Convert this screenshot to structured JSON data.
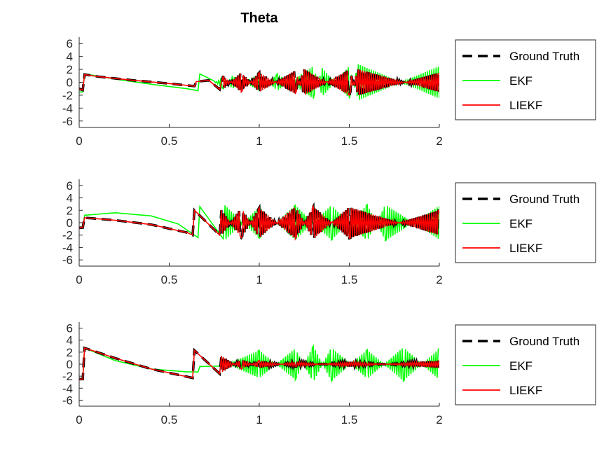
{
  "figure": {
    "title": "Theta"
  },
  "colors": {
    "ground_truth": "#000000",
    "ekf": "#00ff00",
    "liekf": "#ff0000",
    "axes": "#262626"
  },
  "chart_data": [
    {
      "type": "line",
      "title": "Theta",
      "xlabel": "",
      "ylabel": "",
      "xlim": [
        0,
        2
      ],
      "ylim": [
        -7,
        7
      ],
      "xticks": [
        0,
        0.5,
        1,
        1.5,
        2
      ],
      "xtick_labels": [
        "0",
        "0.5",
        "1",
        "1.5",
        "2"
      ],
      "yticks": [
        -6,
        -4,
        -2,
        0,
        2,
        4,
        6
      ],
      "ytick_labels": [
        "-6",
        "-4",
        "-2",
        "0",
        "2",
        "4",
        "6"
      ],
      "legend_location": "outside-right",
      "series": [
        {
          "name": "Ground Truth",
          "style": "dashed",
          "color": "#000000",
          "points": [
            [
              0,
              -1
            ],
            [
              0.02,
              -1.2
            ],
            [
              0.03,
              1.2
            ],
            [
              0.1,
              0.9
            ],
            [
              0.3,
              0.3
            ],
            [
              0.5,
              -0.2
            ],
            [
              0.64,
              -0.6
            ],
            [
              0.65,
              0.1
            ],
            [
              0.72,
              0.3
            ],
            [
              0.78,
              -1.1
            ],
            [
              0.8,
              1.0
            ],
            [
              0.9,
              -1.5
            ],
            [
              1.0,
              1.5
            ],
            [
              1.2,
              -1.8
            ],
            [
              1.25,
              2.0
            ],
            [
              1.5,
              -2.0
            ],
            [
              1.55,
              2.0
            ],
            [
              2.0,
              -1.5
            ]
          ]
        },
        {
          "name": "EKF",
          "style": "solid",
          "color": "#00ff00",
          "points": [
            [
              0,
              -1.5
            ],
            [
              0.02,
              -1.5
            ],
            [
              0.03,
              1.3
            ],
            [
              0.2,
              0.5
            ],
            [
              0.4,
              -0.3
            ],
            [
              0.6,
              -1.0
            ],
            [
              0.66,
              -1.3
            ],
            [
              0.67,
              1.3
            ],
            [
              0.75,
              0.2
            ],
            [
              0.8,
              -1.0
            ],
            [
              0.85,
              1.0
            ],
            [
              1.0,
              -1.3
            ],
            [
              1.1,
              1.3
            ],
            [
              1.3,
              -2.5
            ],
            [
              1.35,
              2.2
            ],
            [
              1.5,
              -2.5
            ],
            [
              1.55,
              2.8
            ],
            [
              2.0,
              -2.5
            ]
          ]
        },
        {
          "name": "LIEKF",
          "style": "solid",
          "color": "#ff0000",
          "points": [
            [
              0,
              -1
            ],
            [
              0.02,
              -1.2
            ],
            [
              0.03,
              1.2
            ],
            [
              0.1,
              0.9
            ],
            [
              0.3,
              0.3
            ],
            [
              0.5,
              -0.2
            ],
            [
              0.64,
              -0.6
            ],
            [
              0.65,
              0.1
            ],
            [
              0.72,
              0.3
            ],
            [
              0.78,
              -1.1
            ],
            [
              0.8,
              1.0
            ],
            [
              0.9,
              -1.5
            ],
            [
              1.0,
              1.5
            ],
            [
              1.2,
              -1.8
            ],
            [
              1.25,
              2.0
            ],
            [
              1.5,
              -2.0
            ],
            [
              1.55,
              2.0
            ],
            [
              2.0,
              -1.5
            ]
          ]
        }
      ]
    },
    {
      "type": "line",
      "title": "",
      "xlabel": "",
      "ylabel": "",
      "xlim": [
        0,
        2
      ],
      "ylim": [
        -7,
        7
      ],
      "xticks": [
        0,
        0.5,
        1,
        1.5,
        2
      ],
      "xtick_labels": [
        "0",
        "0.5",
        "1",
        "1.5",
        "2"
      ],
      "yticks": [
        -6,
        -4,
        -2,
        0,
        2,
        4,
        6
      ],
      "ytick_labels": [
        "-6",
        "-4",
        "-2",
        "0",
        "2",
        "4",
        "6"
      ],
      "legend_location": "outside-right",
      "series": [
        {
          "name": "Ground Truth",
          "style": "dashed",
          "color": "#000000",
          "points": [
            [
              0,
              -0.8
            ],
            [
              0.02,
              -0.8
            ],
            [
              0.03,
              0.8
            ],
            [
              0.2,
              0.4
            ],
            [
              0.4,
              -0.3
            ],
            [
              0.6,
              -1.6
            ],
            [
              0.63,
              -2.0
            ],
            [
              0.64,
              2.0
            ],
            [
              0.78,
              -2.0
            ],
            [
              0.79,
              2.0
            ],
            [
              0.9,
              -2.4
            ],
            [
              1.0,
              2.4
            ],
            [
              1.2,
              -2.6
            ],
            [
              1.3,
              2.6
            ],
            [
              1.5,
              -2.5
            ],
            [
              2.0,
              2.0
            ]
          ]
        },
        {
          "name": "EKF",
          "style": "solid",
          "color": "#00ff00",
          "points": [
            [
              0,
              -0.8
            ],
            [
              0.02,
              -0.8
            ],
            [
              0.03,
              1.2
            ],
            [
              0.2,
              1.6
            ],
            [
              0.4,
              1.1
            ],
            [
              0.55,
              -0.2
            ],
            [
              0.66,
              -2.4
            ],
            [
              0.67,
              2.6
            ],
            [
              0.8,
              -2.6
            ],
            [
              0.81,
              2.8
            ],
            [
              1.0,
              -2.5
            ],
            [
              1.2,
              2.8
            ],
            [
              1.4,
              -2.8
            ],
            [
              1.6,
              2.9
            ],
            [
              1.7,
              -2.9
            ],
            [
              2.0,
              2.7
            ]
          ]
        },
        {
          "name": "LIEKF",
          "style": "solid",
          "color": "#ff0000",
          "points": [
            [
              0,
              -0.8
            ],
            [
              0.02,
              -0.8
            ],
            [
              0.03,
              0.8
            ],
            [
              0.2,
              0.4
            ],
            [
              0.4,
              -0.3
            ],
            [
              0.6,
              -1.6
            ],
            [
              0.63,
              -2.0
            ],
            [
              0.64,
              2.0
            ],
            [
              0.78,
              -2.0
            ],
            [
              0.79,
              2.0
            ],
            [
              0.9,
              -2.4
            ],
            [
              1.0,
              2.4
            ],
            [
              1.2,
              -2.6
            ],
            [
              1.3,
              2.6
            ],
            [
              1.5,
              -2.5
            ],
            [
              2.0,
              2.0
            ]
          ]
        }
      ]
    },
    {
      "type": "line",
      "title": "",
      "xlabel": "",
      "ylabel": "",
      "xlim": [
        0,
        2
      ],
      "ylim": [
        -7,
        7
      ],
      "xticks": [
        0,
        0.5,
        1,
        1.5,
        2
      ],
      "xtick_labels": [
        "0",
        "0.5",
        "1",
        "1.5",
        "2"
      ],
      "yticks": [
        -6,
        -4,
        -2,
        0,
        2,
        4,
        6
      ],
      "ytick_labels": [
        "-6",
        "-4",
        "-2",
        "0",
        "2",
        "4",
        "6"
      ],
      "legend_location": "outside-right",
      "series": [
        {
          "name": "Ground Truth",
          "style": "dashed",
          "color": "#000000",
          "points": [
            [
              0,
              -2.5
            ],
            [
              0.02,
              -2.5
            ],
            [
              0.03,
              2.7
            ],
            [
              0.2,
              1.0
            ],
            [
              0.4,
              -0.8
            ],
            [
              0.6,
              -2.1
            ],
            [
              0.63,
              -2.3
            ],
            [
              0.64,
              2.3
            ],
            [
              0.78,
              -1.6
            ],
            [
              0.79,
              1.4
            ],
            [
              0.9,
              -0.8
            ],
            [
              1.0,
              0.6
            ],
            [
              1.2,
              -0.4
            ],
            [
              1.5,
              0.4
            ],
            [
              2.0,
              -0.6
            ]
          ]
        },
        {
          "name": "EKF",
          "style": "solid",
          "color": "#00ff00",
          "points": [
            [
              0,
              -2.5
            ],
            [
              0.02,
              -2.5
            ],
            [
              0.03,
              2.7
            ],
            [
              0.2,
              0.6
            ],
            [
              0.4,
              -0.8
            ],
            [
              0.6,
              -1.3
            ],
            [
              0.66,
              -1.3
            ],
            [
              0.67,
              -0.4
            ],
            [
              0.8,
              -0.3
            ],
            [
              1.0,
              2.3
            ],
            [
              1.2,
              -2.6
            ],
            [
              1.3,
              3.0
            ],
            [
              1.4,
              -2.8
            ],
            [
              1.6,
              2.4
            ],
            [
              1.8,
              -2.8
            ],
            [
              2.0,
              2.6
            ]
          ]
        },
        {
          "name": "LIEKF",
          "style": "solid",
          "color": "#ff0000",
          "points": [
            [
              0,
              -2.5
            ],
            [
              0.02,
              -2.5
            ],
            [
              0.03,
              2.7
            ],
            [
              0.2,
              1.0
            ],
            [
              0.4,
              -0.8
            ],
            [
              0.6,
              -2.1
            ],
            [
              0.63,
              -2.3
            ],
            [
              0.64,
              2.3
            ],
            [
              0.78,
              -1.6
            ],
            [
              0.79,
              1.4
            ],
            [
              0.9,
              -0.8
            ],
            [
              1.0,
              0.6
            ],
            [
              1.2,
              -0.4
            ],
            [
              1.5,
              0.4
            ],
            [
              2.0,
              -0.6
            ]
          ]
        }
      ]
    }
  ]
}
